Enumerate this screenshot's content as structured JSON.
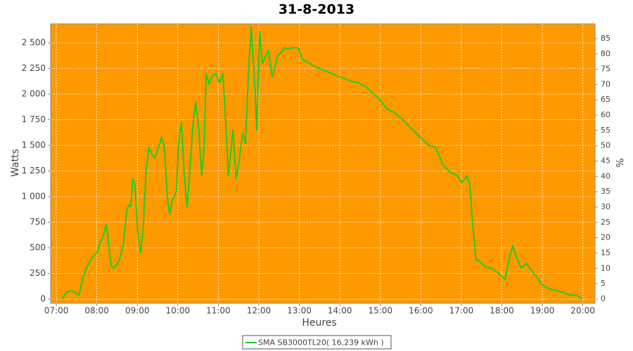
{
  "chart_data": {
    "type": "line",
    "title": "31-8-2013",
    "x_label": "Heures",
    "y_label": "Watts",
    "y2_label": "%",
    "xlim": [
      6.86,
      20.3
    ],
    "xticks": [
      {
        "value": 7,
        "label": "07:00"
      },
      {
        "value": 8,
        "label": "08:00"
      },
      {
        "value": 9,
        "label": "09:00"
      },
      {
        "value": 10,
        "label": "10:00"
      },
      {
        "value": 11,
        "label": "11:00"
      },
      {
        "value": 12,
        "label": "12:00"
      },
      {
        "value": 13,
        "label": "13:00"
      },
      {
        "value": 14,
        "label": "14:00"
      },
      {
        "value": 15,
        "label": "15:00"
      },
      {
        "value": 16,
        "label": "16:00"
      },
      {
        "value": 17,
        "label": "17:00"
      },
      {
        "value": 18,
        "label": "18:00"
      },
      {
        "value": 19,
        "label": "19:00"
      },
      {
        "value": 20,
        "label": "20:00"
      }
    ],
    "ylim": [
      -41,
      2685
    ],
    "yticks": [
      0,
      250,
      500,
      750,
      {
        "value": 1000,
        "label": "1 000"
      },
      {
        "value": 1250,
        "label": "1 250"
      },
      {
        "value": 1500,
        "label": "1 500"
      },
      {
        "value": 1750,
        "label": "1 750"
      },
      {
        "value": 2000,
        "label": "2 000"
      },
      {
        "value": 2250,
        "label": "2 250"
      },
      {
        "value": 2500,
        "label": "2 500"
      }
    ],
    "y2lim": [
      -1.4,
      89.8
    ],
    "y2ticks": [
      0,
      5,
      10,
      15,
      20,
      25,
      30,
      35,
      40,
      45,
      50,
      55,
      60,
      65,
      70,
      75,
      80,
      85
    ],
    "grid": true,
    "plot_background": "#ff9900",
    "legend": "bottom",
    "x": [
      7.14,
      7.26,
      7.38,
      7.49,
      7.56,
      7.66,
      7.76,
      7.9,
      8.01,
      8.09,
      8.18,
      8.23,
      8.28,
      8.35,
      8.41,
      8.48,
      8.56,
      8.65,
      8.74,
      8.79,
      8.84,
      8.89,
      8.94,
      9.01,
      9.08,
      9.14,
      9.22,
      9.29,
      9.36,
      9.43,
      9.5,
      9.6,
      9.67,
      9.74,
      9.8,
      9.86,
      9.92,
      9.97,
      10.02,
      10.09,
      10.16,
      10.23,
      10.3,
      10.37,
      10.44,
      10.51,
      10.59,
      10.65,
      10.7,
      10.77,
      10.85,
      10.94,
      11.03,
      11.11,
      11.17,
      11.25,
      11.36,
      11.44,
      11.51,
      11.6,
      11.67,
      11.74,
      11.81,
      11.88,
      11.95,
      12.02,
      12.09,
      12.17,
      12.24,
      12.33,
      12.4,
      12.47,
      12.56,
      12.63,
      12.73,
      12.83,
      12.97,
      13.08,
      13.25,
      13.42,
      13.6,
      13.77,
      13.94,
      14.12,
      14.29,
      14.47,
      14.64,
      14.81,
      14.99,
      15.16,
      15.33,
      15.51,
      15.68,
      15.85,
      16.03,
      16.2,
      16.37,
      16.55,
      16.72,
      16.9,
      17.02,
      17.14,
      17.21,
      17.28,
      17.36,
      17.45,
      17.59,
      17.76,
      17.93,
      18.08,
      18.18,
      18.27,
      18.37,
      18.48,
      18.6,
      18.7,
      18.84,
      18.98,
      19.15,
      19.33,
      19.5,
      19.67,
      19.85,
      19.99
    ],
    "series": [
      {
        "name": "SMA SB3000TL20( 16,239 kWh )",
        "color": "#22cc22",
        "values": [
          0,
          68,
          82,
          55,
          41,
          212,
          315,
          411,
          452,
          555,
          644,
          726,
          589,
          329,
          301,
          329,
          384,
          521,
          863,
          918,
          904,
          1171,
          1123,
          658,
          452,
          658,
          1274,
          1479,
          1411,
          1377,
          1445,
          1582,
          1479,
          1000,
          829,
          966,
          1000,
          1068,
          1548,
          1719,
          1205,
          897,
          1274,
          1685,
          1925,
          1685,
          1205,
          1479,
          2199,
          2096,
          2178,
          2199,
          2110,
          2199,
          1822,
          1205,
          1651,
          1171,
          1342,
          1616,
          1514,
          2164,
          2658,
          2233,
          1651,
          2610,
          2301,
          2370,
          2425,
          2164,
          2267,
          2384,
          2404,
          2452,
          2438,
          2452,
          2452,
          2336,
          2301,
          2260,
          2233,
          2205,
          2178,
          2151,
          2123,
          2110,
          2075,
          2007,
          1945,
          1856,
          1822,
          1767,
          1699,
          1630,
          1562,
          1500,
          1479,
          1308,
          1240,
          1205,
          1137,
          1205,
          1123,
          726,
          384,
          370,
          315,
          301,
          247,
          192,
          384,
          521,
          397,
          301,
          349,
          295,
          226,
          144,
          103,
          82,
          68,
          41,
          34,
          0
        ]
      }
    ]
  }
}
